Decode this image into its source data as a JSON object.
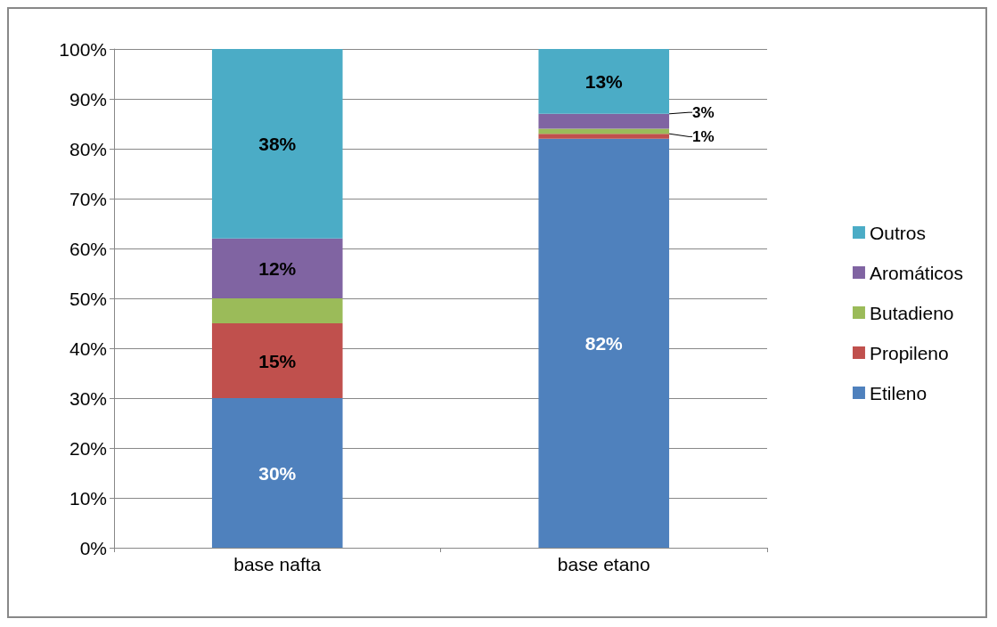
{
  "chart_data": {
    "type": "bar",
    "stacked": true,
    "categories": [
      "base nafta",
      "base etano"
    ],
    "series": [
      {
        "name": "Etileno",
        "color": "#4f81bd",
        "values": [
          30,
          82
        ],
        "value_labels": [
          "30%",
          "82%"
        ]
      },
      {
        "name": "Propileno",
        "color": "#c0504d",
        "values": [
          15,
          1
        ],
        "value_labels": [
          "15%",
          null
        ]
      },
      {
        "name": "Butadieno",
        "color": "#9bbb59",
        "values": [
          5,
          1
        ],
        "value_labels": [
          null,
          "1%"
        ]
      },
      {
        "name": "Aromáticos",
        "color": "#8064a2",
        "values": [
          12,
          3
        ],
        "value_labels": [
          "12%",
          "3%"
        ]
      },
      {
        "name": "Outros",
        "color": "#4bacc6",
        "values": [
          38,
          13
        ],
        "value_labels": [
          "38%",
          "13%"
        ]
      }
    ],
    "ylim": [
      0,
      100
    ],
    "yticks": [
      {
        "value": 0,
        "label": "0%"
      },
      {
        "value": 10,
        "label": "10%"
      },
      {
        "value": 20,
        "label": "20%"
      },
      {
        "value": 30,
        "label": "30%"
      },
      {
        "value": 40,
        "label": "40%"
      },
      {
        "value": 50,
        "label": "50%"
      },
      {
        "value": 60,
        "label": "60%"
      },
      {
        "value": 70,
        "label": "70%"
      },
      {
        "value": 80,
        "label": "80%"
      },
      {
        "value": 90,
        "label": "90%"
      },
      {
        "value": 100,
        "label": "100%"
      }
    ],
    "grid": "y",
    "legend": "right"
  }
}
